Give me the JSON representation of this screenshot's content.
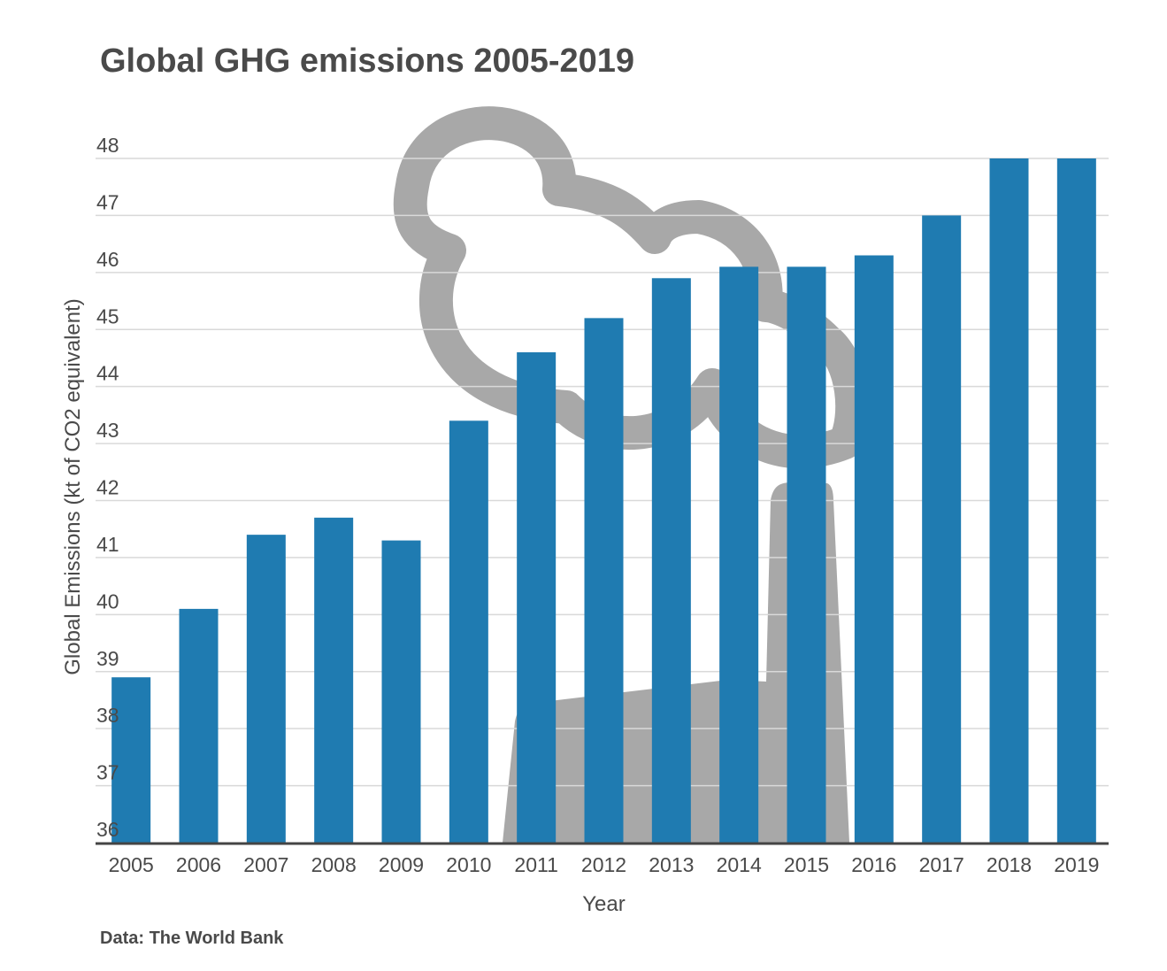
{
  "chart_data": {
    "type": "bar",
    "title": "Global GHG emissions 2005-2019",
    "xlabel": "Year",
    "ylabel": "Global Emissions (kt of CO2 equivalent)",
    "source": "Data: The World Bank",
    "categories": [
      "2005",
      "2006",
      "2007",
      "2008",
      "2009",
      "2010",
      "2011",
      "2012",
      "2013",
      "2014",
      "2015",
      "2016",
      "2017",
      "2018",
      "2019"
    ],
    "values": [
      38.9,
      40.1,
      41.4,
      41.7,
      41.3,
      43.4,
      44.6,
      45.2,
      45.9,
      46.1,
      46.1,
      46.3,
      47.0,
      48.0,
      48.0
    ],
    "ylim": [
      36,
      48
    ],
    "yticks": [
      "36",
      "37",
      "38",
      "39",
      "40",
      "41",
      "42",
      "43",
      "44",
      "45",
      "46",
      "47",
      "48"
    ],
    "grid": true,
    "bar_color": "#1f7bb1",
    "gridline_color": "#d9d9d9",
    "illustration": "factory-smoke-icon",
    "illustration_color": "#a8a8a8"
  }
}
